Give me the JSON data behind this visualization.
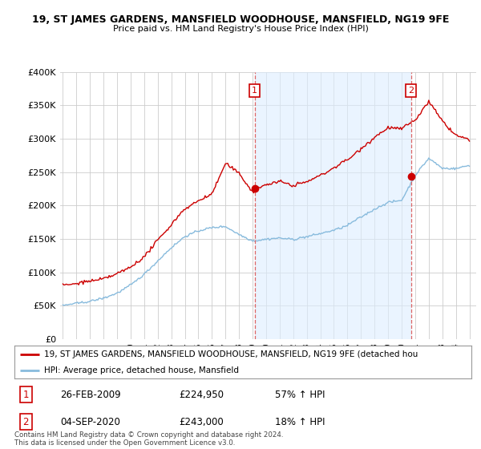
{
  "title": "19, ST JAMES GARDENS, MANSFIELD WOODHOUSE, MANSFIELD, NG19 9FE",
  "subtitle": "Price paid vs. HM Land Registry's House Price Index (HPI)",
  "red_label": "19, ST JAMES GARDENS, MANSFIELD WOODHOUSE, MANSFIELD, NG19 9FE (detached hou",
  "blue_label": "HPI: Average price, detached house, Mansfield",
  "annotation1_date": "26-FEB-2009",
  "annotation1_price": "£224,950",
  "annotation1_pct": "57% ↑ HPI",
  "annotation2_date": "04-SEP-2020",
  "annotation2_price": "£243,000",
  "annotation2_pct": "18% ↑ HPI",
  "footer": "Contains HM Land Registry data © Crown copyright and database right 2024.\nThis data is licensed under the Open Government Licence v3.0.",
  "ylim": [
    0,
    400000
  ],
  "yticks": [
    0,
    50000,
    100000,
    150000,
    200000,
    250000,
    300000,
    350000,
    400000
  ],
  "xlim_start": 1994.8,
  "xlim_end": 2025.5,
  "marker1_x": 2009.15,
  "marker1_y": 224950,
  "marker2_x": 2020.68,
  "marker2_y": 243000,
  "red_color": "#cc0000",
  "blue_color": "#88bbdd",
  "dashed_color": "#dd6666",
  "shade_color": "#ddeeff",
  "marker_box_color": "#cc0000",
  "background_color": "#ffffff",
  "grid_color": "#cccccc"
}
